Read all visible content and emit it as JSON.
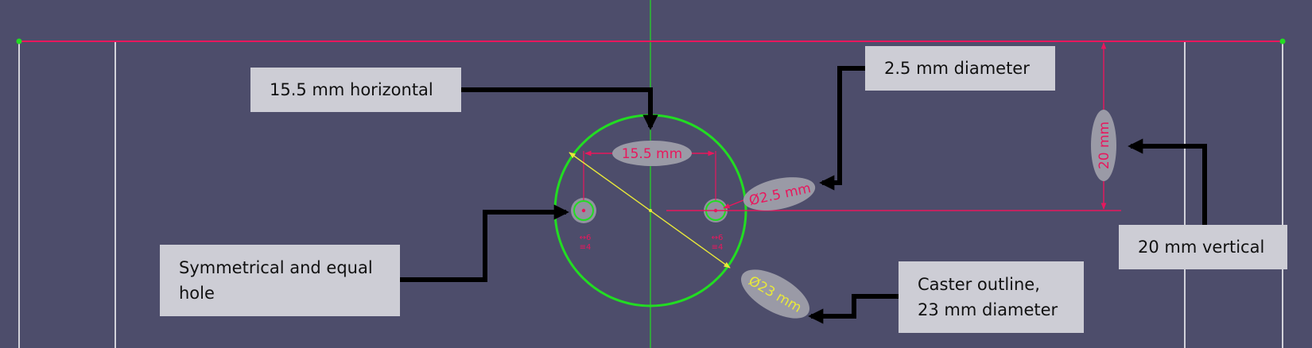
{
  "colors": {
    "background": "#4d4d6b",
    "construction_line": "#22dd22",
    "dimension": "#e8175d",
    "diameter_line": "#e8e83a",
    "label_bubble": "#9a9aa6",
    "callout_box": "#cdcdd5",
    "arrow": "#000000",
    "sketch_edge": "#ffffff"
  },
  "dimensions": {
    "horizontal": "15.5 mm",
    "small_diameter": "Ø2.5 mm",
    "vertical": "20 mm",
    "caster_diameter": "Ø23 mm"
  },
  "constraint_marks": {
    "left_hole": [
      "↔6",
      "≡4"
    ],
    "right_hole": [
      "↔6",
      "≡4"
    ]
  },
  "callouts": {
    "horizontal": "15.5 mm horizontal",
    "small_diameter": "2.5 mm diameter",
    "vertical": "20 mm vertical",
    "symmetric": "Symmetrical and equal\nhole",
    "caster": "Caster outline,\n23 mm diameter"
  }
}
